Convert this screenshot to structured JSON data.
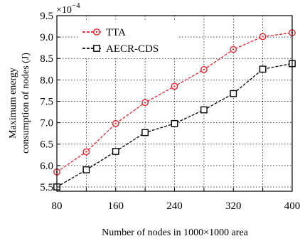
{
  "chart_data": {
    "type": "line",
    "x": [
      80,
      120,
      160,
      200,
      240,
      280,
      320,
      360,
      400
    ],
    "xticks": [
      80,
      160,
      240,
      320,
      400
    ],
    "yticks": [
      5.5,
      6.0,
      6.5,
      7.0,
      7.5,
      8.0,
      8.5,
      9.0,
      9.5
    ],
    "xlim": [
      80,
      400
    ],
    "ylim": [
      5.4,
      9.5
    ],
    "xlabel": "Number of nodes in 1000×1000 area",
    "ylabel_line1": "Maximum energy",
    "ylabel_line2": "consumption of nodes (J)",
    "scale_base": "×10",
    "scale_exp": "−4",
    "grid": true,
    "legend_position": "top-left",
    "series": [
      {
        "name": "TTA",
        "color": "#e8202a",
        "line_style": "dashed",
        "marker": "circle-dot",
        "values": [
          5.85,
          6.32,
          6.98,
          7.47,
          7.85,
          8.24,
          8.71,
          9.01,
          9.1
        ]
      },
      {
        "name": "AECR-CDS",
        "color": "#000000",
        "line_style": "dashed",
        "marker": "square",
        "values": [
          5.5,
          5.9,
          6.33,
          6.77,
          6.98,
          7.3,
          7.68,
          8.25,
          8.38
        ]
      }
    ]
  }
}
